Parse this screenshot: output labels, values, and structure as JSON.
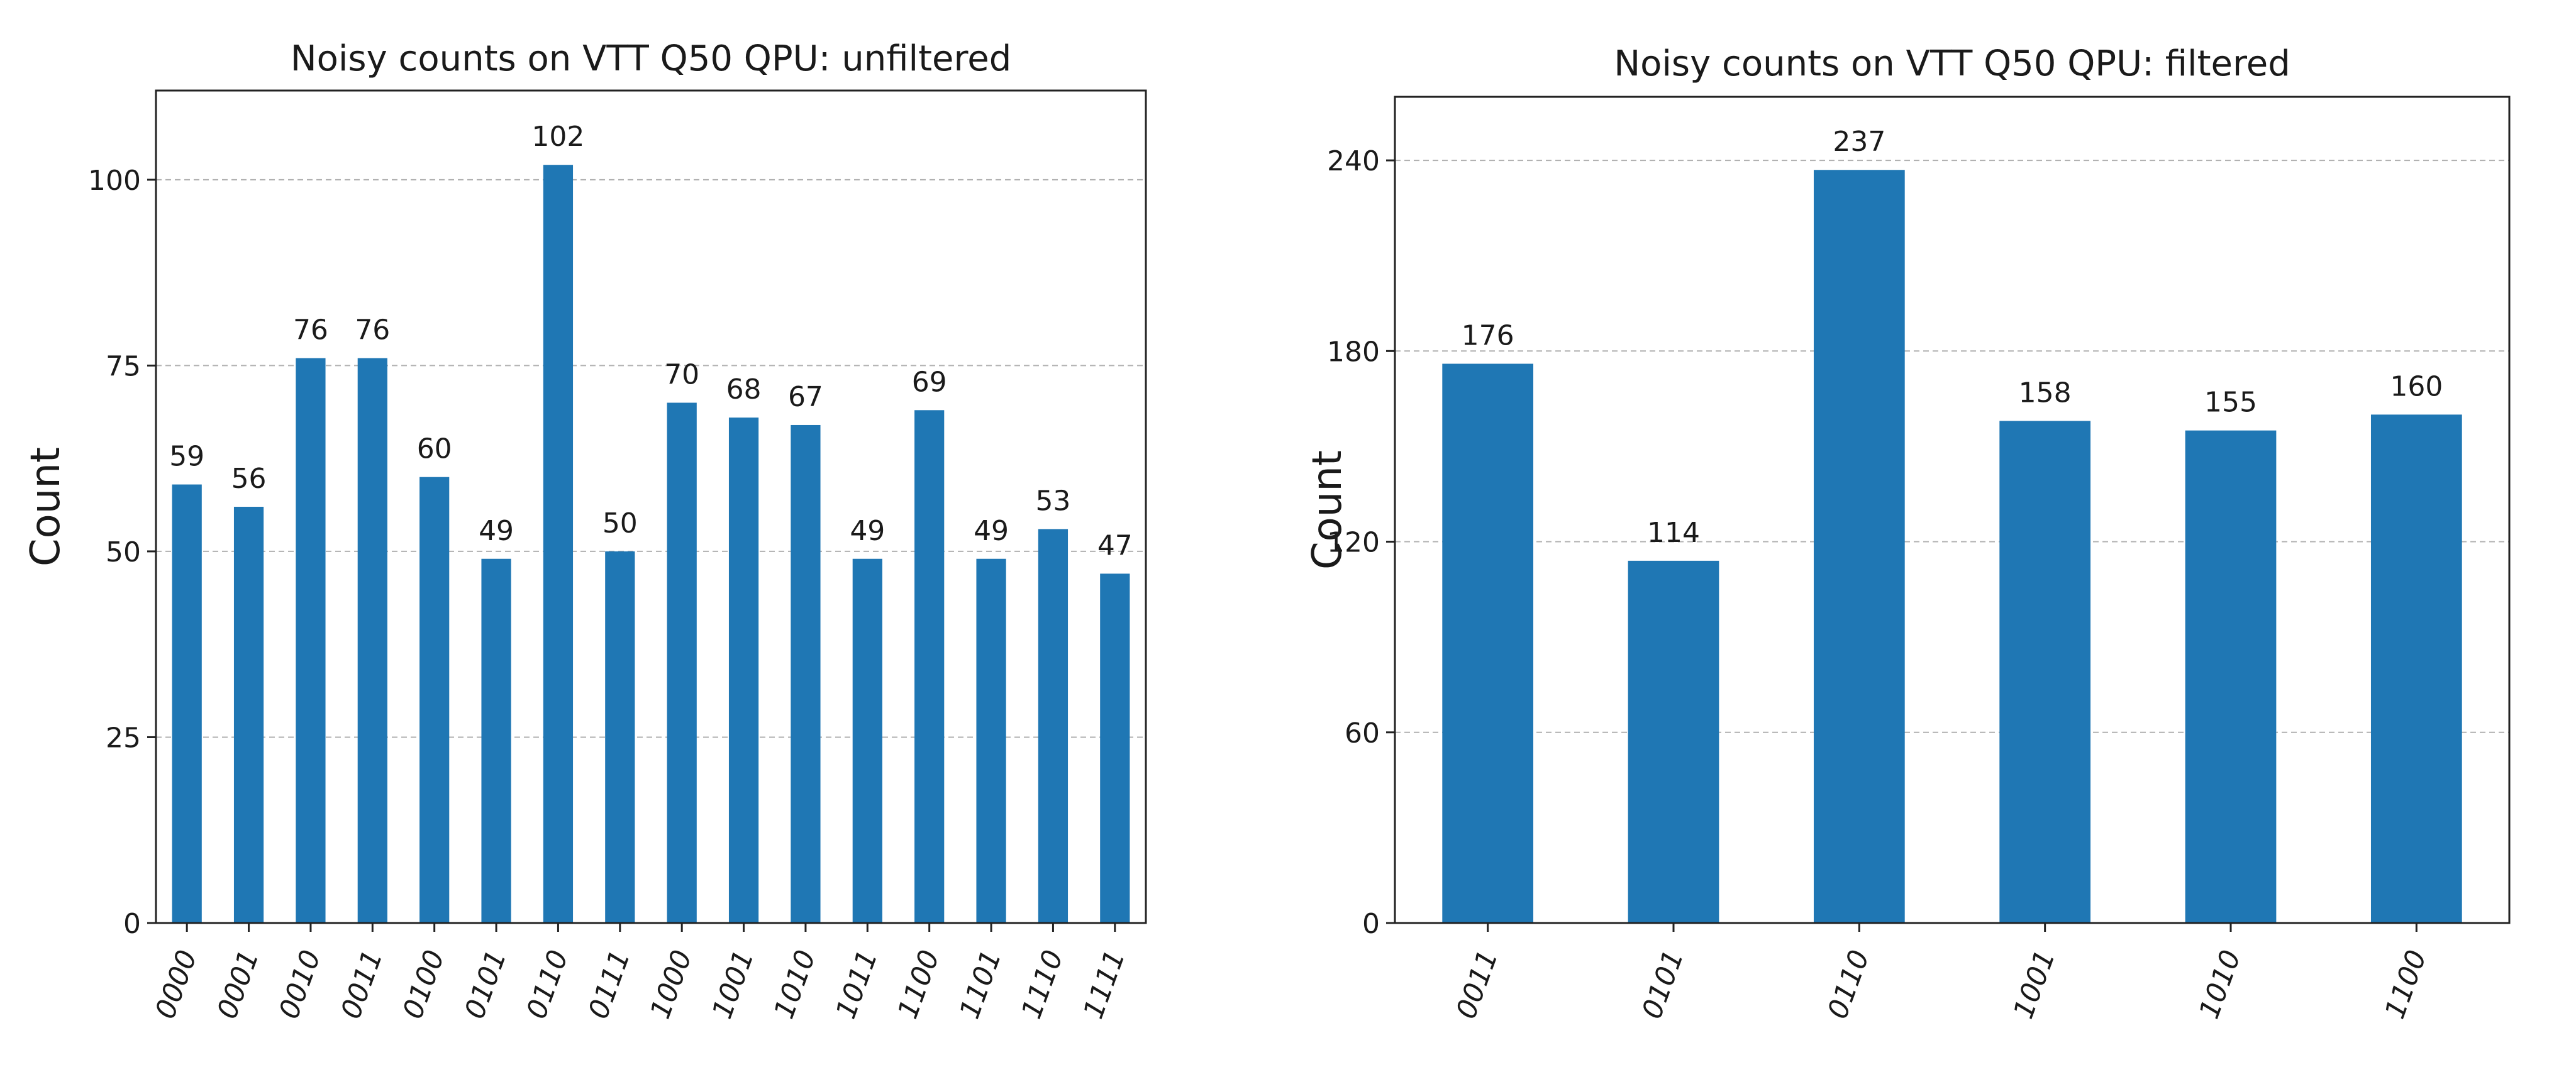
{
  "chart_data": [
    {
      "type": "bar",
      "title": "Noisy counts on VTT Q50 QPU: unfiltered",
      "xlabel": "",
      "ylabel": "Count",
      "categories": [
        "0000",
        "0001",
        "0010",
        "0011",
        "0100",
        "0101",
        "0110",
        "0111",
        "1000",
        "1001",
        "1010",
        "1011",
        "1100",
        "1101",
        "1110",
        "1111"
      ],
      "values": [
        59,
        56,
        76,
        76,
        60,
        49,
        102,
        50,
        70,
        68,
        67,
        49,
        69,
        49,
        53,
        47
      ],
      "yticks": [
        0,
        25,
        50,
        75,
        100
      ],
      "ylim": [
        0,
        112
      ],
      "grid": true,
      "color": "#1f77b4"
    },
    {
      "type": "bar",
      "title": "Noisy counts on VTT Q50 QPU: filtered",
      "xlabel": "",
      "ylabel": "Count",
      "categories": [
        "0011",
        "0101",
        "0110",
        "1001",
        "1010",
        "1100"
      ],
      "values": [
        176,
        114,
        237,
        158,
        155,
        160
      ],
      "yticks": [
        0,
        60,
        120,
        180,
        240
      ],
      "ylim": [
        0,
        260
      ],
      "grid": true,
      "color": "#1f77b4"
    }
  ]
}
